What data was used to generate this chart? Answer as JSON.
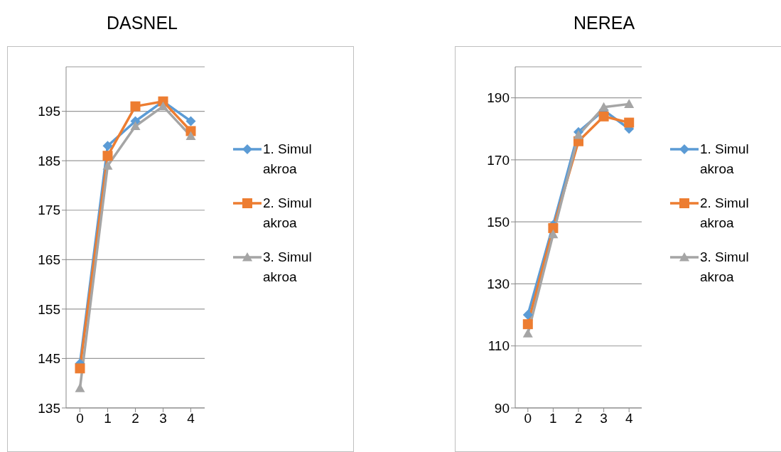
{
  "chart_data": [
    {
      "type": "line",
      "title": "DASNEL",
      "categories": [
        "0",
        "1",
        "2",
        "3",
        "4"
      ],
      "series": [
        {
          "name": "1. Simulakroa",
          "color": "#5b9bd5",
          "marker": "diamond",
          "values": [
            144,
            188,
            193,
            197,
            193
          ]
        },
        {
          "name": "2. Simulakroa",
          "color": "#ed7d31",
          "marker": "square",
          "values": [
            143,
            186,
            196,
            197,
            191
          ]
        },
        {
          "name": "3. Simulakroa",
          "color": "#a5a5a5",
          "marker": "triangle",
          "values": [
            139,
            184,
            192,
            196,
            190
          ]
        }
      ],
      "ylim": [
        135,
        204
      ],
      "yticks": [
        135,
        145,
        155,
        165,
        175,
        185,
        195
      ],
      "grid": "y",
      "legend": "right",
      "line_style": "solid"
    },
    {
      "type": "line",
      "title": "NEREA",
      "categories": [
        "0",
        "1",
        "2",
        "3",
        "4"
      ],
      "series": [
        {
          "name": "1. Simulakroa",
          "color": "#5b9bd5",
          "marker": "diamond",
          "values": [
            120,
            149,
            179,
            186,
            180
          ]
        },
        {
          "name": "2. Simulakroa",
          "color": "#ed7d31",
          "marker": "square",
          "values": [
            117,
            148,
            176,
            184,
            182
          ]
        },
        {
          "name": "3. Simulakroa",
          "color": "#a5a5a5",
          "marker": "triangle",
          "values": [
            114,
            146,
            178,
            187,
            188
          ]
        }
      ],
      "ylim": [
        90,
        200
      ],
      "yticks": [
        90,
        110,
        130,
        150,
        170,
        190
      ],
      "grid": "y",
      "legend": "right",
      "line_style": "solid"
    }
  ]
}
